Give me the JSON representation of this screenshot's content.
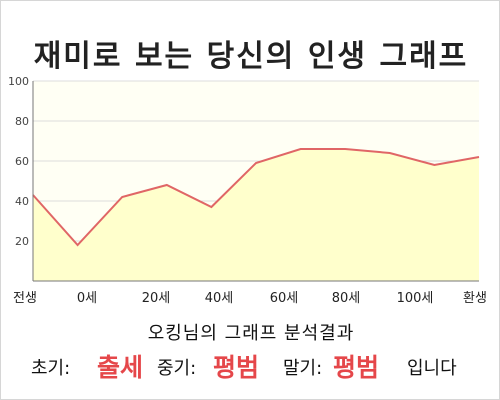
{
  "title": "재미로 보는 당신의 인생 그래프",
  "analysis_title": "오킹님의 그래프 분석결과",
  "summary": {
    "early_label": "초기:",
    "early_value": "출세",
    "middle_label": "중기:",
    "middle_value": "평범",
    "late_label": "말기:",
    "late_value": "평범",
    "suffix": "입니다"
  },
  "colors": {
    "line": "#e06666",
    "fill": "#ffffcc",
    "plot_bg": "#fffff4",
    "grid": "#dcdcdc",
    "accent": "#e5474a"
  },
  "chart_data": {
    "type": "area",
    "title": "재미로 보는 당신의 인생 그래프",
    "xlabel": "",
    "ylabel": "",
    "ylim": [
      0,
      100
    ],
    "yticks": [
      20,
      40,
      60,
      80,
      100
    ],
    "grid": true,
    "legend": "none",
    "x_tick_labels": [
      "전생",
      "0세",
      "20세",
      "40세",
      "60세",
      "80세",
      "100세",
      "환생"
    ],
    "series": [
      {
        "values": [
          43,
          18,
          42,
          48,
          37,
          59,
          66,
          66,
          64,
          58,
          62
        ]
      }
    ]
  }
}
